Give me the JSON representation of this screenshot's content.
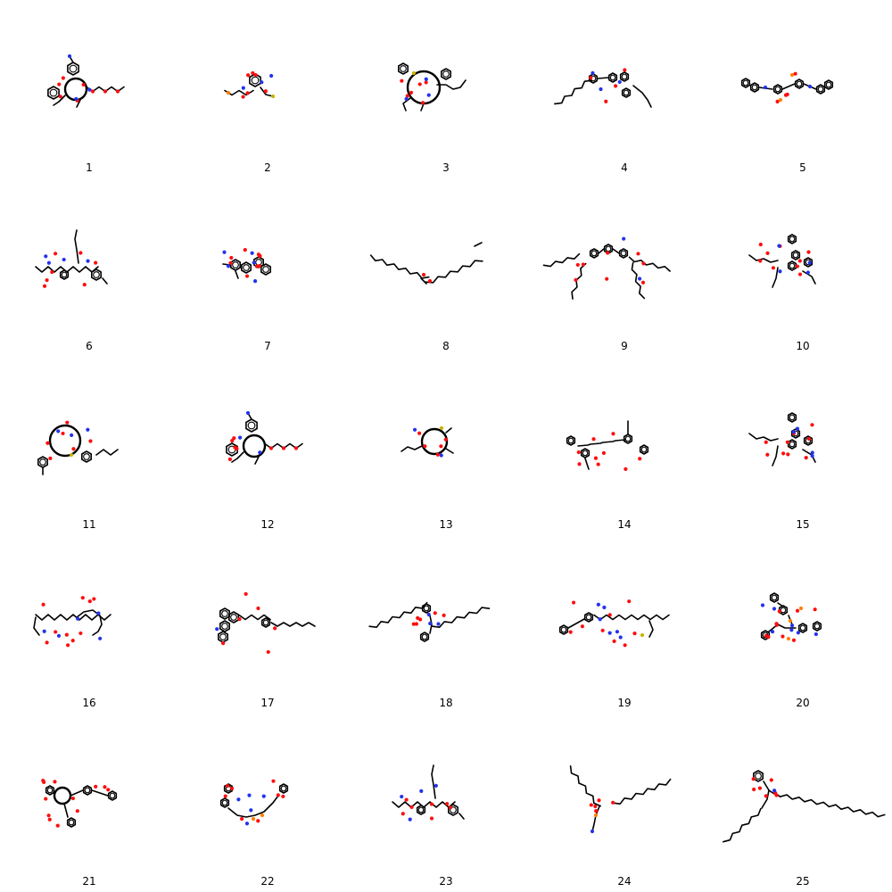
{
  "grid": {
    "rows": 5,
    "cols": 5,
    "colors": {
      "bond": "#000000",
      "oxygen": "#ff0d0d",
      "nitrogen": "#2233ee",
      "sulfur": "#c8b400",
      "phosphorus": "#ff8000"
    },
    "molecules": [
      {
        "label": "1",
        "style": "macrocycle-arms"
      },
      {
        "label": "2",
        "style": "small-phosphate"
      },
      {
        "label": "3",
        "style": "macrocycle-large"
      },
      {
        "label": "4",
        "style": "chain-aromatic"
      },
      {
        "label": "5",
        "style": "aromatic-linear"
      },
      {
        "label": "6",
        "style": "peptide-branch"
      },
      {
        "label": "7",
        "style": "polyaromatic-compact"
      },
      {
        "label": "8",
        "style": "isoprenoid-chain"
      },
      {
        "label": "9",
        "style": "aromatic-four-tails"
      },
      {
        "label": "10",
        "style": "branched-cluster"
      },
      {
        "label": "11",
        "style": "macrocycle-peptide"
      },
      {
        "label": "12",
        "style": "macrocycle-arms"
      },
      {
        "label": "13",
        "style": "macrocycle-small"
      },
      {
        "label": "14",
        "style": "aromatic-linker"
      },
      {
        "label": "15",
        "style": "branched-cluster"
      },
      {
        "label": "16",
        "style": "peptide-chain"
      },
      {
        "label": "17",
        "style": "steroid-chain"
      },
      {
        "label": "18",
        "style": "lipid-aromatic"
      },
      {
        "label": "19",
        "style": "peptide-linear"
      },
      {
        "label": "20",
        "style": "nucleotide-cluster"
      },
      {
        "label": "21",
        "style": "polyphenol"
      },
      {
        "label": "22",
        "style": "dinucleotide"
      },
      {
        "label": "23",
        "style": "peptide-branch"
      },
      {
        "label": "24",
        "style": "phospholipid"
      },
      {
        "label": "25",
        "style": "glycolipid"
      }
    ]
  }
}
